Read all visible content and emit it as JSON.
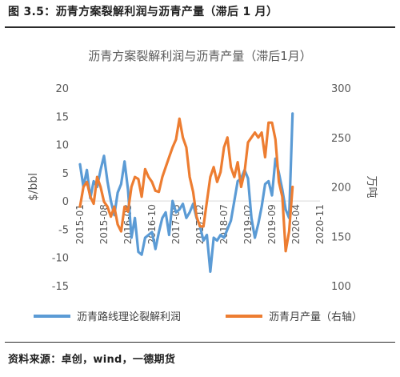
{
  "caption": "图 3.5：沥青方案裂解利润与沥青产量（滞后 1 月）",
  "source": "资料来源：卓创，wind，一德期货",
  "chart_data": {
    "type": "line",
    "title": "沥青方案裂解利润与沥青产量（滞后1月）",
    "ylabel_left": "$/bbl",
    "ylabel_right": "万吨",
    "ylim_left": [
      -15,
      20
    ],
    "ylim_right": [
      100,
      300
    ],
    "yticks_left": [
      "-15",
      "-10",
      "-5",
      "0",
      "5",
      "10",
      "15",
      "20"
    ],
    "yticks_right": [
      "100",
      "150",
      "200",
      "250",
      "300"
    ],
    "xticks": [
      "2015-01",
      "2015-08",
      "2016-03",
      "2016-10",
      "2017-05",
      "2017-12",
      "2018-07",
      "2019-02",
      "2019-09",
      "2020-04",
      "2020-11"
    ],
    "x_range": [
      "2015-01",
      "2020-11"
    ],
    "grid": false,
    "legend_position": "bottom",
    "series": [
      {
        "name": "沥青路线理论裂解利润",
        "axis": "left",
        "color": "#5B9BD5",
        "x": [
          "2015-01",
          "2015-02",
          "2015-03",
          "2015-04",
          "2015-05",
          "2015-06",
          "2015-07",
          "2015-08",
          "2015-09",
          "2015-10",
          "2015-11",
          "2015-12",
          "2016-01",
          "2016-02",
          "2016-03",
          "2016-04",
          "2016-05",
          "2016-06",
          "2016-07",
          "2016-08",
          "2016-09",
          "2016-10",
          "2016-11",
          "2016-12",
          "2017-01",
          "2017-02",
          "2017-03",
          "2017-04",
          "2017-05",
          "2017-06",
          "2017-07",
          "2017-08",
          "2017-09",
          "2017-10",
          "2017-11",
          "2017-12",
          "2018-01",
          "2018-02",
          "2018-03",
          "2018-04",
          "2018-05",
          "2018-06",
          "2018-07",
          "2018-08",
          "2018-09",
          "2018-10",
          "2018-11",
          "2018-12",
          "2019-01",
          "2019-02",
          "2019-03",
          "2019-04",
          "2019-05",
          "2019-06",
          "2019-07",
          "2019-08",
          "2019-09",
          "2019-10",
          "2019-11",
          "2019-12",
          "2020-01",
          "2020-02",
          "2020-03"
        ],
        "values": [
          6.5,
          2.5,
          5.5,
          0.5,
          3.5,
          2.5,
          5.5,
          8.0,
          3.5,
          0.0,
          -2.5,
          1.5,
          3.0,
          7.0,
          2.0,
          -6.5,
          -3.0,
          -9.0,
          -9.5,
          -6.5,
          -6.0,
          -5.5,
          -8.5,
          -5.5,
          -3.0,
          -2.0,
          -6.0,
          0.0,
          -2.0,
          -1.5,
          -0.5,
          -3.0,
          -2.0,
          -0.5,
          -3.0,
          -4.5,
          -7.0,
          -6.0,
          -12.5,
          -6.5,
          -7.0,
          -6.0,
          -6.5,
          -5.0,
          -3.5,
          0.0,
          3.5,
          4.0,
          5.5,
          4.0,
          -3.0,
          -6.5,
          -4.0,
          -1.0,
          3.0,
          3.5,
          1.0,
          7.5,
          5.0,
          2.0,
          -1.5,
          -3.0,
          15.5
        ]
      },
      {
        "name": "沥青月产量（右轴）",
        "axis": "right",
        "color": "#ED7D31",
        "x": [
          "2015-01",
          "2015-02",
          "2015-03",
          "2015-04",
          "2015-05",
          "2015-06",
          "2015-07",
          "2015-08",
          "2015-09",
          "2015-10",
          "2015-11",
          "2015-12",
          "2016-01",
          "2016-02",
          "2016-03",
          "2016-04",
          "2016-05",
          "2016-06",
          "2016-07",
          "2016-08",
          "2016-09",
          "2016-10",
          "2016-11",
          "2016-12",
          "2017-01",
          "2017-02",
          "2017-03",
          "2017-04",
          "2017-05",
          "2017-06",
          "2017-07",
          "2017-08",
          "2017-09",
          "2017-10",
          "2017-11",
          "2017-12",
          "2018-01",
          "2018-02",
          "2018-03",
          "2018-04",
          "2018-05",
          "2018-06",
          "2018-07",
          "2018-08",
          "2018-09",
          "2018-10",
          "2018-11",
          "2018-12",
          "2019-01",
          "2019-02",
          "2019-03",
          "2019-04",
          "2019-05",
          "2019-06",
          "2019-07",
          "2019-08",
          "2019-09",
          "2019-10",
          "2019-11",
          "2019-12",
          "2020-01",
          "2020-02",
          "2020-03"
        ],
        "values": [
          180,
          200,
          205,
          190,
          183,
          210,
          200,
          185,
          180,
          170,
          180,
          162,
          155,
          180,
          175,
          200,
          210,
          208,
          190,
          218,
          210,
          205,
          196,
          195,
          210,
          220,
          230,
          240,
          248,
          269,
          250,
          240,
          210,
          195,
          170,
          160,
          160,
          185,
          210,
          220,
          205,
          215,
          240,
          250,
          220,
          210,
          225,
          200,
          215,
          245,
          250,
          255,
          250,
          255,
          230,
          265,
          265,
          248,
          205,
          190,
          135,
          155,
          200
        ]
      }
    ]
  },
  "legend": [
    {
      "label": "沥青路线理论裂解利润",
      "color": "#5B9BD5"
    },
    {
      "label": "沥青月产量（右轴）",
      "color": "#ED7D31"
    }
  ]
}
